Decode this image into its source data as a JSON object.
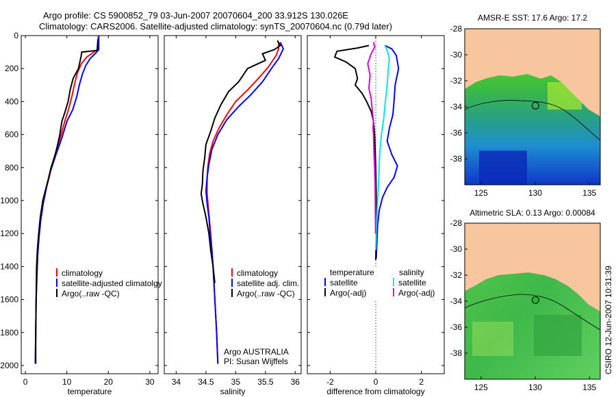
{
  "header": {
    "title_line1": "Argo profile: CS 5900852_79 03-Jun-2007 20070604_200 33.912S 130.026E",
    "title_line2": "Climatology: CARS2006. Satellite-adjusted climatology: synTS_20070604.nc (0.79d later)"
  },
  "colors": {
    "climatology": "#ff0000",
    "satellite": "#0000ff",
    "argo": "#000000",
    "salinity_satellite": "#00e5e5",
    "salinity_argo": "#e000e0",
    "land": "#f7c69e"
  },
  "chart_data": [
    {
      "type": "line",
      "name": "temperature-profile",
      "xlabel": "temperature",
      "xlim": [
        -1,
        32
      ],
      "ylim": [
        2050,
        0
      ],
      "xticks": [
        "0",
        "10",
        "20",
        "30"
      ],
      "yticks": [
        "0",
        "200",
        "400",
        "600",
        "800",
        "1000",
        "1200",
        "1400",
        "1600",
        "1800",
        "2000"
      ],
      "series": [
        {
          "name": "climatology",
          "color": "#ff0000",
          "points": [
            [
              17.6,
              0
            ],
            [
              17.6,
              80
            ],
            [
              16.5,
              100
            ],
            [
              14.8,
              130
            ],
            [
              13.5,
              170
            ],
            [
              12.5,
              230
            ],
            [
              11.8,
              300
            ],
            [
              11.3,
              360
            ],
            [
              10.5,
              440
            ],
            [
              9.5,
              520
            ],
            [
              8.4,
              620
            ],
            [
              7.2,
              720
            ],
            [
              6.0,
              820
            ],
            [
              5.0,
              920
            ],
            [
              4.2,
              1020
            ],
            [
              3.6,
              1120
            ],
            [
              3.2,
              1220
            ],
            [
              3.0,
              1320
            ],
            [
              2.8,
              1450
            ],
            [
              2.6,
              1600
            ],
            [
              2.5,
              1800
            ],
            [
              2.4,
              1980
            ]
          ]
        },
        {
          "name": "satellite-adjusted climatology",
          "color": "#0000ff",
          "points": [
            [
              17.7,
              0
            ],
            [
              17.7,
              85
            ],
            [
              16.8,
              110
            ],
            [
              15.6,
              140
            ],
            [
              14.6,
              180
            ],
            [
              13.8,
              230
            ],
            [
              13.0,
              300
            ],
            [
              12.4,
              370
            ],
            [
              11.4,
              450
            ],
            [
              10.0,
              520
            ],
            [
              8.8,
              620
            ],
            [
              7.4,
              720
            ],
            [
              6.1,
              820
            ],
            [
              5.1,
              920
            ],
            [
              4.3,
              1020
            ],
            [
              3.7,
              1120
            ],
            [
              3.3,
              1220
            ],
            [
              3.0,
              1320
            ],
            [
              2.8,
              1450
            ],
            [
              2.6,
              1600
            ],
            [
              2.5,
              1800
            ],
            [
              2.4,
              1990
            ]
          ]
        },
        {
          "name": "Argo(..raw -QC)",
          "color": "#000000",
          "points": [
            [
              17.5,
              20
            ],
            [
              17.3,
              90
            ],
            [
              13.6,
              100
            ],
            [
              13.4,
              130
            ],
            [
              12.8,
              200
            ],
            [
              11.5,
              260
            ],
            [
              10.8,
              330
            ],
            [
              10.3,
              400
            ],
            [
              9.6,
              460
            ],
            [
              8.8,
              520
            ],
            [
              8.3,
              600
            ],
            [
              7.8,
              660
            ],
            [
              7.2,
              720
            ],
            [
              6.2,
              800
            ],
            [
              5.6,
              870
            ],
            [
              4.8,
              940
            ],
            [
              4.2,
              1000
            ],
            [
              3.6,
              1100
            ],
            [
              3.2,
              1200
            ],
            [
              2.9,
              1300
            ],
            [
              2.7,
              1400
            ],
            [
              2.6,
              1600
            ],
            [
              2.5,
              1800
            ],
            [
              2.5,
              1990
            ]
          ]
        }
      ],
      "legend": [
        "climatology",
        "satellite-adjusted climatolgy",
        "Argo(..raw -QC)"
      ],
      "legend_location": "bottom-right"
    },
    {
      "type": "line",
      "name": "salinity-profile",
      "xlabel": "salinity",
      "xlim": [
        33.8,
        36.1
      ],
      "ylim": [
        2050,
        0
      ],
      "xticks": [
        "34",
        "34.5",
        "35",
        "35.5",
        "36"
      ],
      "series": [
        {
          "name": "climatology",
          "color": "#ff0000",
          "points": [
            [
              35.72,
              40
            ],
            [
              35.72,
              80
            ],
            [
              35.68,
              120
            ],
            [
              35.55,
              190
            ],
            [
              35.38,
              260
            ],
            [
              35.2,
              330
            ],
            [
              35.0,
              400
            ],
            [
              34.85,
              480
            ],
            [
              34.72,
              560
            ],
            [
              34.62,
              640
            ],
            [
              34.56,
              720
            ],
            [
              34.53,
              800
            ],
            [
              34.52,
              880
            ],
            [
              34.52,
              960
            ],
            [
              34.54,
              1040
            ],
            [
              34.56,
              1120
            ],
            [
              34.58,
              1200
            ],
            [
              34.6,
              1300
            ],
            [
              34.62,
              1400
            ],
            [
              34.65,
              1600
            ],
            [
              34.68,
              1800
            ],
            [
              34.7,
              1990
            ]
          ]
        },
        {
          "name": "satellite adj. clim.",
          "color": "#0000ff",
          "points": [
            [
              35.75,
              40
            ],
            [
              35.8,
              80
            ],
            [
              35.72,
              140
            ],
            [
              35.6,
              200
            ],
            [
              35.45,
              280
            ],
            [
              35.25,
              360
            ],
            [
              35.05,
              430
            ],
            [
              34.85,
              510
            ],
            [
              34.7,
              600
            ],
            [
              34.6,
              690
            ],
            [
              34.55,
              780
            ],
            [
              34.52,
              860
            ],
            [
              34.5,
              940
            ],
            [
              34.52,
              1020
            ],
            [
              34.55,
              1100
            ],
            [
              34.57,
              1200
            ],
            [
              34.6,
              1300
            ],
            [
              34.62,
              1400
            ],
            [
              34.65,
              1600
            ],
            [
              34.68,
              1800
            ],
            [
              34.7,
              1990
            ]
          ]
        },
        {
          "name": "Argo(..raw -QC)",
          "color": "#000000",
          "points": [
            [
              35.7,
              30
            ],
            [
              35.75,
              60
            ],
            [
              35.65,
              85
            ],
            [
              35.45,
              110
            ],
            [
              35.5,
              150
            ],
            [
              35.2,
              200
            ],
            [
              35.05,
              280
            ],
            [
              34.88,
              340
            ],
            [
              34.75,
              420
            ],
            [
              34.65,
              500
            ],
            [
              34.58,
              580
            ],
            [
              34.5,
              660
            ],
            [
              34.48,
              740
            ],
            [
              34.45,
              820
            ],
            [
              34.44,
              900
            ],
            [
              34.42,
              960
            ],
            [
              34.45,
              1020
            ],
            [
              34.5,
              1100
            ],
            [
              34.55,
              1200
            ],
            [
              34.58,
              1300
            ],
            [
              34.62,
              1400
            ],
            [
              34.65,
              1500
            ]
          ]
        }
      ],
      "legend": [
        "climatology",
        "satellite adj. clim.",
        "Argo(..raw -QC)"
      ],
      "legend_location": "bottom-right",
      "annotation_line1": "Argo AUSTRALIA",
      "annotation_line2": "PI: Susan Wijffels"
    },
    {
      "type": "line",
      "name": "difference-profile",
      "xlabel": "difference from climatology",
      "xlim": [
        -3,
        3
      ],
      "ylim": [
        2050,
        0
      ],
      "xticks": [
        "-2",
        "0",
        "2"
      ],
      "zero_line": "dotted",
      "series": [
        {
          "name": "temperature satellite",
          "color": "#0000ff",
          "points": [
            [
              0.4,
              60
            ],
            [
              0.7,
              80
            ],
            [
              0.9,
              120
            ],
            [
              1.0,
              200
            ],
            [
              0.85,
              300
            ],
            [
              0.8,
              400
            ],
            [
              0.75,
              480
            ],
            [
              0.6,
              560
            ],
            [
              0.5,
              640
            ],
            [
              0.7,
              720
            ],
            [
              0.95,
              790
            ],
            [
              0.8,
              860
            ],
            [
              0.5,
              920
            ],
            [
              0.3,
              980
            ],
            [
              0.15,
              1060
            ],
            [
              0.08,
              1150
            ],
            [
              0.05,
              1250
            ],
            [
              0.02,
              1350
            ]
          ]
        },
        {
          "name": "temperature Argo(-adj)",
          "color": "#000000",
          "points": [
            [
              -0.3,
              60
            ],
            [
              -0.8,
              75
            ],
            [
              -1.7,
              95
            ],
            [
              -1.8,
              130
            ],
            [
              -1.3,
              160
            ],
            [
              -0.9,
              200
            ],
            [
              -0.8,
              260
            ],
            [
              -0.9,
              300
            ],
            [
              -0.6,
              350
            ],
            [
              -0.4,
              400
            ],
            [
              -0.2,
              460
            ],
            [
              -0.1,
              520
            ],
            [
              -0.05,
              600
            ],
            [
              0.0,
              800
            ],
            [
              0.02,
              1000
            ],
            [
              0.02,
              1200
            ],
            [
              0.0,
              1360
            ]
          ]
        },
        {
          "name": "salinity satellite",
          "color": "#00e5e5",
          "points": [
            [
              0.4,
              60
            ],
            [
              0.5,
              90
            ],
            [
              0.6,
              140
            ],
            [
              0.55,
              200
            ],
            [
              0.5,
              300
            ],
            [
              0.42,
              400
            ],
            [
              0.35,
              500
            ],
            [
              0.25,
              600
            ],
            [
              0.18,
              700
            ],
            [
              0.15,
              800
            ],
            [
              0.12,
              900
            ],
            [
              0.08,
              1000
            ],
            [
              0.05,
              1100
            ],
            [
              0.02,
              1200
            ],
            [
              0.0,
              1300
            ]
          ]
        },
        {
          "name": "salinity Argo(-adj)",
          "color": "#e000e0",
          "points": [
            [
              -0.1,
              40
            ],
            [
              -0.05,
              70
            ],
            [
              -0.2,
              110
            ],
            [
              -0.35,
              170
            ],
            [
              -0.25,
              240
            ],
            [
              -0.3,
              320
            ],
            [
              -0.2,
              380
            ],
            [
              -0.15,
              460
            ],
            [
              -0.1,
              520
            ],
            [
              -0.12,
              560
            ],
            [
              -0.1,
              600
            ],
            [
              -0.08,
              700
            ],
            [
              -0.05,
              800
            ],
            [
              -0.03,
              900
            ],
            [
              -0.02,
              1000
            ],
            [
              -0.01,
              1200
            ]
          ]
        }
      ],
      "legend_left_title": "temperature",
      "legend_right_title": "salinity",
      "legend_left": [
        "satellite",
        "Argo(-adj)"
      ],
      "legend_right": [
        "satellite",
        "Argo(-adj)"
      ],
      "legend_location": "bottom"
    },
    {
      "type": "heatmap",
      "name": "sst-map",
      "title": "AMSR-E SST: 17.6 Argo: 17.2",
      "xlim": [
        123.5,
        136
      ],
      "ylim": [
        -40,
        -28
      ],
      "xticks": [
        "125",
        "130",
        "135"
      ],
      "yticks": [
        "-28",
        "-30",
        "-32",
        "-34",
        "-36",
        "-38"
      ],
      "float_marker": {
        "lon": 130.026,
        "lat": -33.912,
        "fill": "none"
      }
    },
    {
      "type": "heatmap",
      "name": "sla-map",
      "title": "Altimetric SLA: 0.13 Argo: 0.00084",
      "xlim": [
        123.5,
        136
      ],
      "ylim": [
        -40,
        -28
      ],
      "xticks": [
        "125",
        "130",
        "135"
      ],
      "yticks": [
        "-28",
        "-30",
        "-32",
        "-34",
        "-36",
        "-38"
      ],
      "float_marker": {
        "lon": 130.026,
        "lat": -33.912,
        "fill": "#22bb22"
      }
    }
  ],
  "footer": {
    "credit": "CSIRO 12-Jun-2007 10:31:39"
  }
}
